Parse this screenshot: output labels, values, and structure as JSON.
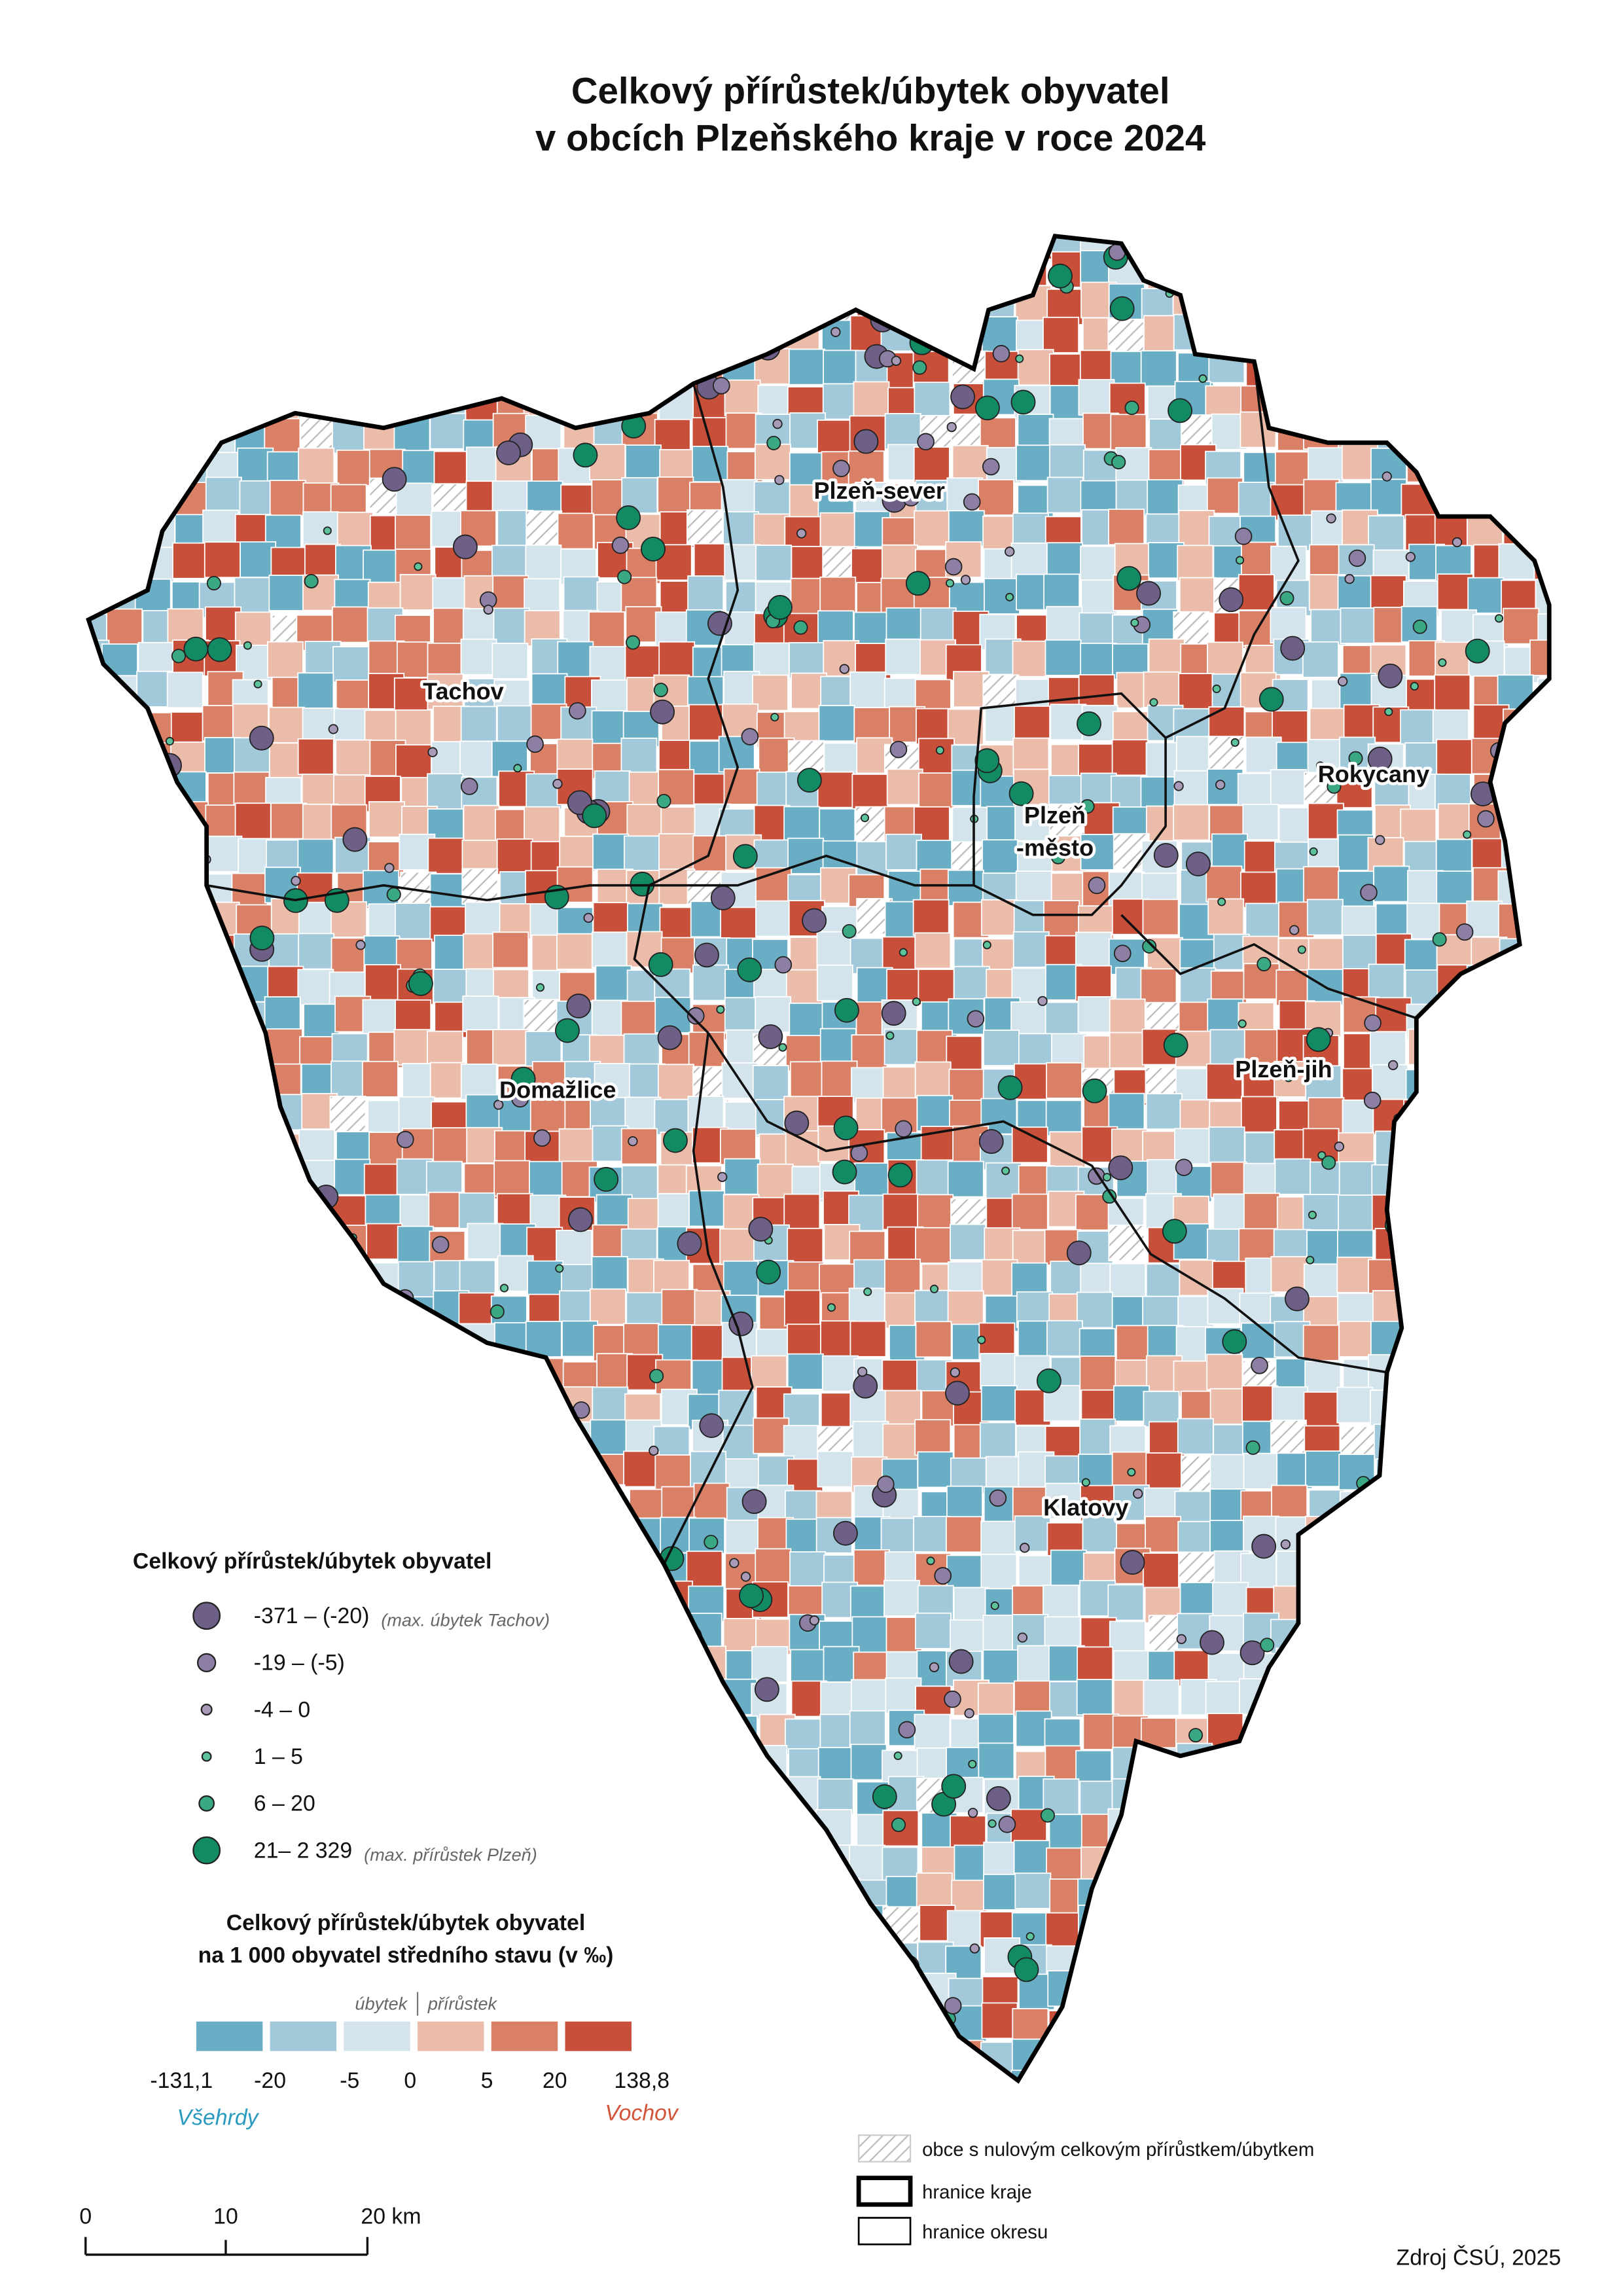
{
  "title": [
    "Celkový přírůstek/úbytek obyvatel",
    "v obcích Plzeňského kraje v roce 2024"
  ],
  "districts": [
    "Plzeň-sever",
    "Tachov",
    "Rokycany",
    "Plzeň\n-město",
    "Domažlice",
    "Plzeň-jih",
    "Klatovy"
  ],
  "circle_legend": {
    "title": "Celkový přírůstek/úbytek obyvatel",
    "items": [
      {
        "label": "-371 – (-20)",
        "note": "(max. úbytek Tachov)"
      },
      {
        "label": "-19 – (-5)"
      },
      {
        "label": "-4 – 0"
      },
      {
        "label": "1 – 5"
      },
      {
        "label": "6 – 20"
      },
      {
        "label": "21– 2 329",
        "note": "(max. přírůstek Plzeň)"
      }
    ]
  },
  "rate_legend": {
    "title": [
      "Celkový přírůstek/úbytek obyvatel",
      "na 1 000 obyvatel středního stavu (v ‰)"
    ],
    "loss": "úbytek",
    "gain": "přírůstek",
    "labels": [
      "-131,1",
      "-20",
      "-5",
      "0",
      "5",
      "20",
      "138,8"
    ],
    "min_place": "Všehrdy",
    "max_place": "Vochov"
  },
  "other_legend": [
    "obce s nulovým celkovým přírůstkem/úbytkem",
    "hranice kraje",
    "hranice okresu"
  ],
  "scale": [
    "0",
    "10",
    "20 km"
  ],
  "source": "Zdroj ČSÚ, 2025"
}
